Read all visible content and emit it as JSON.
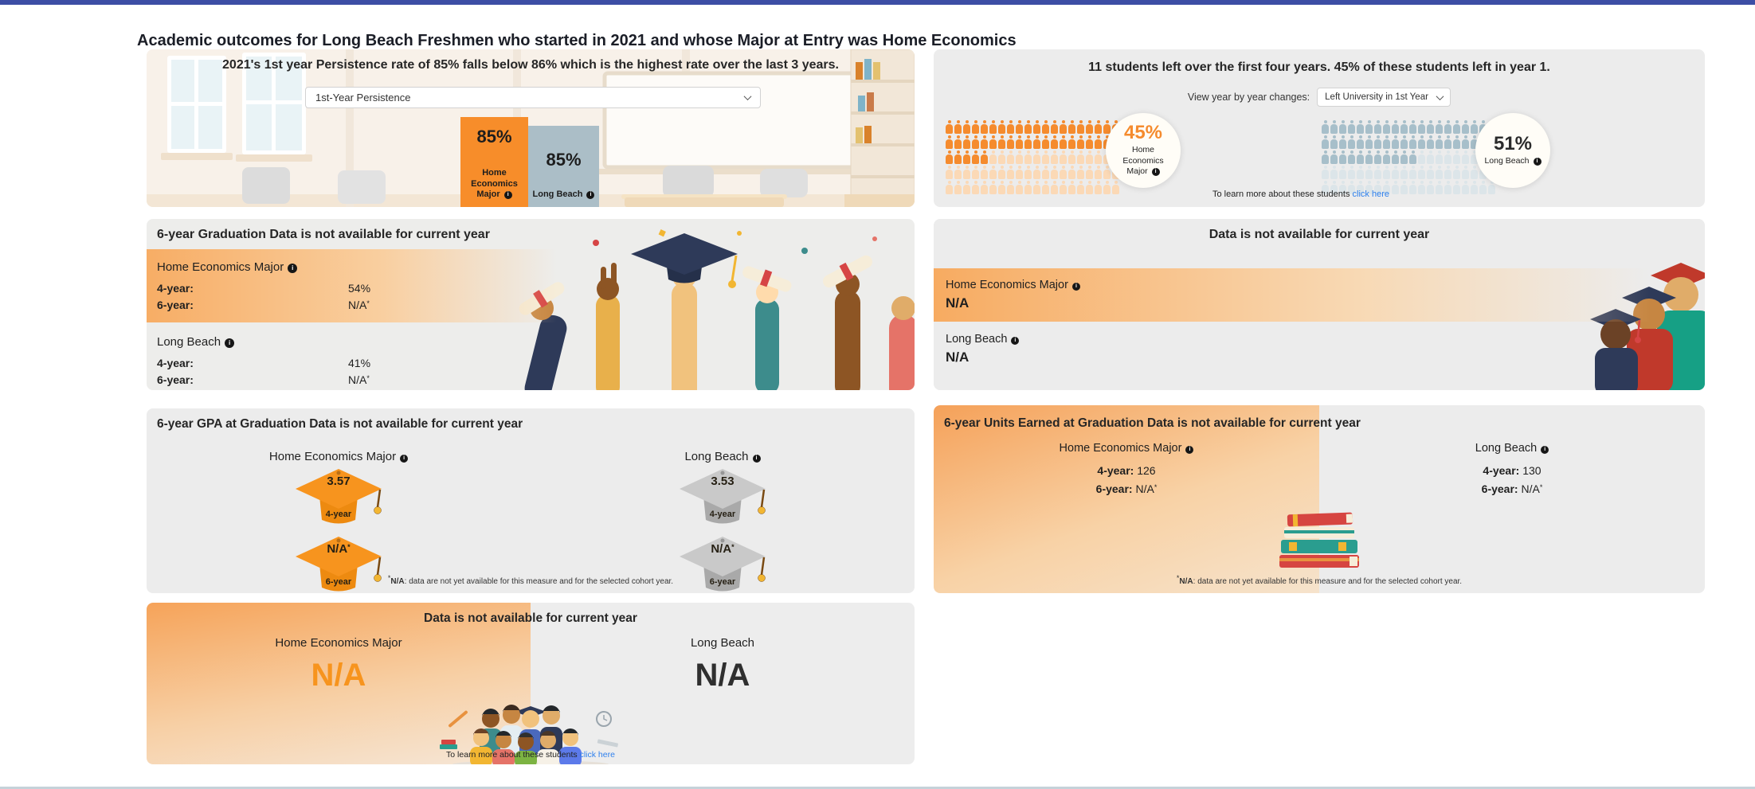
{
  "page": {
    "title": "Academic outcomes for Long Beach Freshmen who started in 2021 and whose Major at Entry was Home Economics"
  },
  "colors": {
    "top_bar": "#3D4EA5",
    "accent_orange": "#F7941E",
    "bar_orange": "#F78D2A",
    "bar_gray": "#ABBEC7",
    "link_blue": "#2F80ED",
    "text_dark": "#2B2B2B"
  },
  "footnote": {
    "sup": "*",
    "bold": "N/A",
    "rest": ": data are not yet available for this measure and for the selected cohort year."
  },
  "p1": {
    "headline": "2021's 1st year Persistence rate of 85% falls below 86% which is the highest rate over the last 3 years.",
    "dropdown_value": "1st-Year Persistence",
    "bars": [
      {
        "value": "85%",
        "label": "Home Economics Major"
      },
      {
        "value": "85%",
        "label": "Long Beach"
      }
    ]
  },
  "p2": {
    "headline": "11 students left over the first four years. 45% of these students left in year 1.",
    "filter_label": "View year by year changes:",
    "dropdown_value": "Left University in 1st Year",
    "groups": [
      {
        "name": "Home Economics Major",
        "value_label": "45%",
        "percent": 45,
        "total": 100,
        "fill": "#F58B2E",
        "empty": "#FBD9B6",
        "value_color": "#F58B2E"
      },
      {
        "name": "Long Beach",
        "value_label": "51%",
        "percent": 51,
        "total": 100,
        "fill": "#A7BFCA",
        "empty": "#DCE5E9",
        "value_color": "#2B2B2B"
      }
    ],
    "learn_more": {
      "text": "To learn more about these students",
      "link": "click here"
    }
  },
  "p3": {
    "header": "6-year Graduation Data is not available for current year",
    "groups": [
      {
        "name": "Home Economics Major",
        "rows": [
          {
            "label": "4-year:",
            "value": "54%",
            "sup": ""
          },
          {
            "label": "6-year:",
            "value": "N/A",
            "sup": "*"
          }
        ]
      },
      {
        "name": "Long Beach",
        "rows": [
          {
            "label": "4-year:",
            "value": "41%",
            "sup": ""
          },
          {
            "label": "6-year:",
            "value": "N/A",
            "sup": "*"
          }
        ]
      }
    ]
  },
  "p4": {
    "header": "Data is not available for current year",
    "groups": [
      {
        "name": "Home Economics Major",
        "value": "N/A"
      },
      {
        "name": "Long Beach",
        "value": "N/A"
      }
    ]
  },
  "p5": {
    "header": "6-year GPA at Graduation Data is not available for current year",
    "columns": [
      {
        "name": "Home Economics Major",
        "top": "#F7941E",
        "base": "#ED8A10",
        "caps": [
          {
            "value": "3.57",
            "sup": "",
            "label": "4-year"
          },
          {
            "value": "N/A",
            "sup": "*",
            "label": "6-year"
          }
        ]
      },
      {
        "name": "Long Beach",
        "top": "#C9C9C9",
        "base": "#A9A9A9",
        "caps": [
          {
            "value": "3.53",
            "sup": "",
            "label": "4-year"
          },
          {
            "value": "N/A",
            "sup": "*",
            "label": "6-year"
          }
        ]
      }
    ]
  },
  "p6": {
    "header": "6-year Units Earned at Graduation Data is not available for current year",
    "columns": [
      {
        "name": "Home Economics Major",
        "rows": [
          {
            "label": "4-year:",
            "value": "126",
            "sup": ""
          },
          {
            "label": "6-year:",
            "value": "N/A",
            "sup": "*"
          }
        ]
      },
      {
        "name": "Long Beach",
        "rows": [
          {
            "label": "4-year:",
            "value": "130",
            "sup": ""
          },
          {
            "label": "6-year:",
            "value": "N/A",
            "sup": "*"
          }
        ]
      }
    ]
  },
  "p7": {
    "header": "Data is not available for current year",
    "columns": [
      {
        "name": "Home Economics Major",
        "value": "N/A",
        "value_color": "#F7941E"
      },
      {
        "name": "Long Beach",
        "value": "N/A",
        "value_color": "#2F2F2F"
      }
    ],
    "learn_more": {
      "text": "To learn more about these students",
      "link": "click here"
    }
  },
  "chart_data": [
    {
      "type": "bar",
      "title": "1st-Year Persistence",
      "categories": [
        "Home Economics Major",
        "Long Beach"
      ],
      "values": [
        85,
        85
      ],
      "unit": "%"
    },
    {
      "type": "pictograph",
      "title": "Left University in 1st Year",
      "categories": [
        "Home Economics Major",
        "Long Beach"
      ],
      "values": [
        45,
        51
      ],
      "unit": "%"
    },
    {
      "type": "table",
      "title": "Graduation rate",
      "series": [
        {
          "name": "Home Economics Major",
          "4-year": "54%",
          "6-year": "N/A"
        },
        {
          "name": "Long Beach",
          "4-year": "41%",
          "6-year": "N/A"
        }
      ]
    },
    {
      "type": "table",
      "title": "GPA at Graduation",
      "series": [
        {
          "name": "Home Economics Major",
          "4-year": 3.57,
          "6-year": "N/A"
        },
        {
          "name": "Long Beach",
          "4-year": 3.53,
          "6-year": "N/A"
        }
      ]
    },
    {
      "type": "table",
      "title": "Units Earned at Graduation",
      "series": [
        {
          "name": "Home Economics Major",
          "4-year": 126,
          "6-year": "N/A"
        },
        {
          "name": "Long Beach",
          "4-year": 130,
          "6-year": "N/A"
        }
      ]
    }
  ]
}
